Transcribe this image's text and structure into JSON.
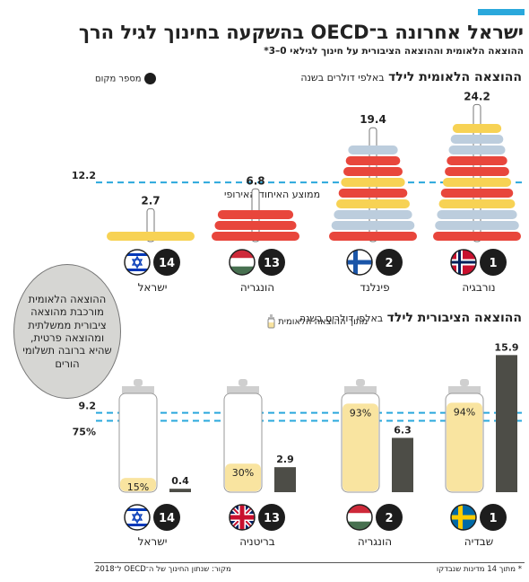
{
  "header": {
    "title": "ישראל אחרונה ב־OECD בהשקעה בחינוך לגיל הרך",
    "subtitle": "ההוצאה הלאומית וההוצאה הציבורית על חינוך לגילאי 0–3*"
  },
  "legend": {
    "rank": "מספר מקום",
    "national_share": "מתוך ההוצאה הלאומית"
  },
  "callout": "ההוצאה הלאומית מורכבת מהוצאה ציבורית ממשלתית ומהוצאה פרטית, שהיא ברובה תשלומי הורים",
  "footer": {
    "note": "* מתוך 14 מדינות שנבדקו",
    "source": "מקור: שנתון החינוך של ה־OECD ל־2018"
  },
  "colors": {
    "accent": "#2aa8dc",
    "yellow": "#f7d254",
    "red": "#e8463c",
    "light_blue": "#bccddd",
    "bottle_fill": "#f9e4a0",
    "public_bar": "#4d4d47",
    "dark": "#1d1d1d"
  },
  "chart_data": [
    {
      "type": "bar",
      "title_bold": "ההוצאה הלאומית לילד",
      "title_rest": "באלפי דולרים בשנה",
      "categories": [
        "נורבגיה",
        "פינלנד",
        "הונגריה",
        "ישראל"
      ],
      "values": [
        24.2,
        19.4,
        6.8,
        2.7
      ],
      "value_labels": [
        "24.2",
        "19.4",
        "6.8",
        "2.7"
      ],
      "ranks": [
        "1",
        "2",
        "13",
        "14"
      ],
      "flags": [
        "norway-flag",
        "finland-flag",
        "hungary-flag",
        "israel-flag"
      ],
      "reference_line": {
        "value": 12.2,
        "label": "12.2",
        "name": "ממוצע האיחוד האירופי"
      }
    },
    {
      "type": "bar",
      "title_bold": "ההוצאה הציבורית לילד",
      "title_rest": "באלפי דולרים בשנה",
      "categories": [
        "שבדיה",
        "הונגריה",
        "בריטניה",
        "ישראל"
      ],
      "values": [
        15.9,
        6.3,
        2.9,
        0.4
      ],
      "value_labels": [
        "15.9",
        "6.3",
        "2.9",
        "0.4"
      ],
      "share_of_national_pct": [
        94,
        93,
        30,
        15
      ],
      "share_labels": [
        "94%",
        "93%",
        "30%",
        "15%"
      ],
      "ranks": [
        "1",
        "2",
        "13",
        "14"
      ],
      "flags": [
        "sweden-flag",
        "hungary-flag",
        "uk-flag",
        "israel-flag"
      ],
      "reference_lines": [
        {
          "value": 9.2,
          "label": "9.2"
        },
        {
          "value": 75,
          "unit": "%",
          "label": "75%"
        }
      ]
    }
  ]
}
